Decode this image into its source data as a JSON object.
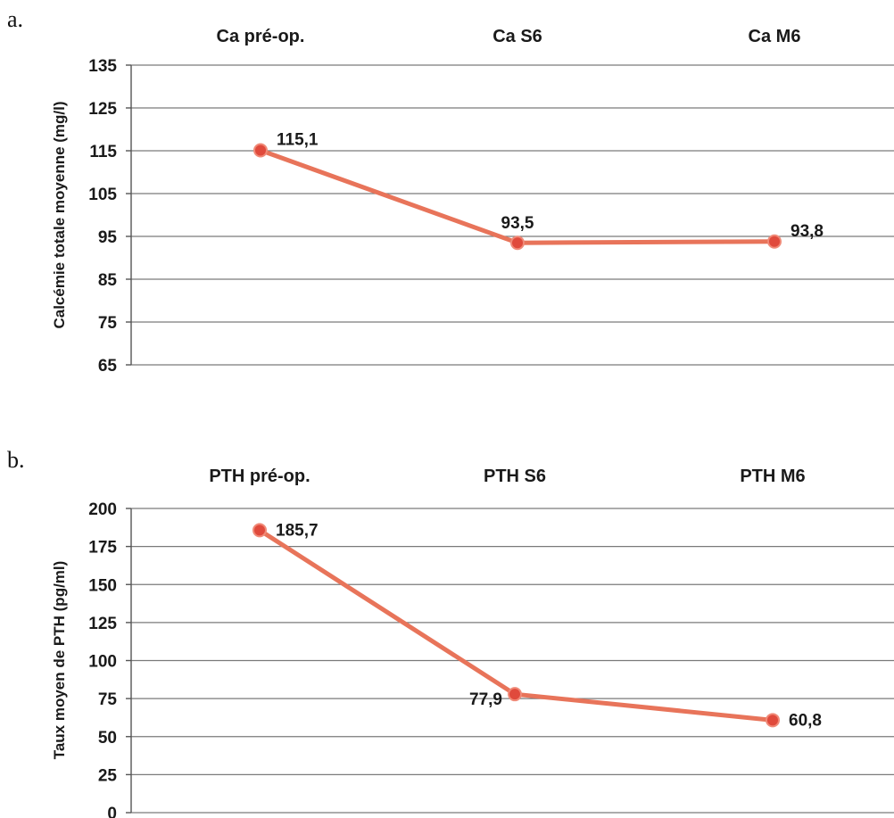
{
  "chart_data": [
    {
      "panel": "a.",
      "type": "line",
      "categories": [
        "Ca pré-op.",
        "Ca S6",
        "Ca M6"
      ],
      "values": [
        115.1,
        93.5,
        93.8
      ],
      "value_labels": [
        "115,1",
        "93,5",
        "93,8"
      ],
      "ylabel": "Calcémie totale moyenne (mg/l)",
      "ylim": [
        65,
        135
      ],
      "yticks": [
        135,
        125,
        115,
        105,
        95,
        85,
        75,
        65
      ],
      "grid": true,
      "line_color": "#e8745a",
      "marker_color": "#e04a3c"
    },
    {
      "panel": "b.",
      "type": "line",
      "categories": [
        "PTH pré-op.",
        "PTH S6",
        "PTH M6"
      ],
      "values": [
        185.7,
        77.9,
        60.8
      ],
      "value_labels": [
        "185,7",
        "77,9",
        "60,8"
      ],
      "ylabel": "Taux moyen de PTH (pg/ml)",
      "ylim": [
        0,
        200
      ],
      "yticks": [
        200,
        175,
        150,
        125,
        100,
        75,
        50,
        25,
        0
      ],
      "grid": true,
      "line_color": "#e8745a",
      "marker_color": "#e04a3c"
    }
  ]
}
